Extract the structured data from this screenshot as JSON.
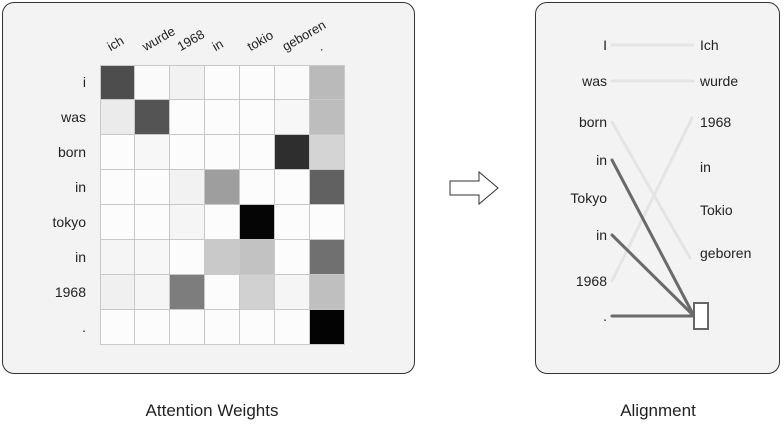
{
  "attention": {
    "caption": "Attention Weights",
    "source_words": [
      "ich",
      "wurde",
      "1968",
      "in",
      "tokio",
      "geboren",
      "."
    ],
    "target_words": [
      "i",
      "was",
      "born",
      "in",
      "tokyo",
      "in",
      "1968",
      "."
    ],
    "weights": [
      [
        0.7,
        0.02,
        0.05,
        0.01,
        0.01,
        0.02,
        0.27
      ],
      [
        0.08,
        0.67,
        0.01,
        0.01,
        0.01,
        0.03,
        0.26
      ],
      [
        0.01,
        0.03,
        0.01,
        0.01,
        0.01,
        0.82,
        0.17
      ],
      [
        0.01,
        0.01,
        0.05,
        0.38,
        0.01,
        0.01,
        0.62
      ],
      [
        0.01,
        0.01,
        0.04,
        0.01,
        0.98,
        0.01,
        0.01
      ],
      [
        0.04,
        0.03,
        0.01,
        0.21,
        0.24,
        0.01,
        0.56
      ],
      [
        0.06,
        0.04,
        0.51,
        0.01,
        0.18,
        0.04,
        0.25
      ],
      [
        0.01,
        0.01,
        0.01,
        0.01,
        0.01,
        0.01,
        0.99
      ]
    ]
  },
  "alignment": {
    "caption": "Alignment",
    "source_words": [
      "I",
      "was",
      "born",
      "in",
      "Tokyo",
      "in",
      "1968",
      "."
    ],
    "target_words": [
      "Ich",
      "wurde",
      "1968",
      "in",
      "Tokio",
      "geboren",
      "."
    ],
    "links": [
      {
        "from": 0,
        "to": 0,
        "strength": "weak"
      },
      {
        "from": 1,
        "to": 1,
        "strength": "weak"
      },
      {
        "from": 2,
        "to": 5,
        "strength": "weak"
      },
      {
        "from": 6,
        "to": 2,
        "strength": "weak"
      },
      {
        "from": 3,
        "to": 6,
        "strength": "strong"
      },
      {
        "from": 5,
        "to": 6,
        "strength": "strong"
      },
      {
        "from": 7,
        "to": 6,
        "strength": "strong"
      }
    ]
  },
  "colors": {
    "weak_link": "#e4e4e4",
    "strong_link": "#6a6a6a",
    "panel_bg": "#f3f3f3"
  }
}
